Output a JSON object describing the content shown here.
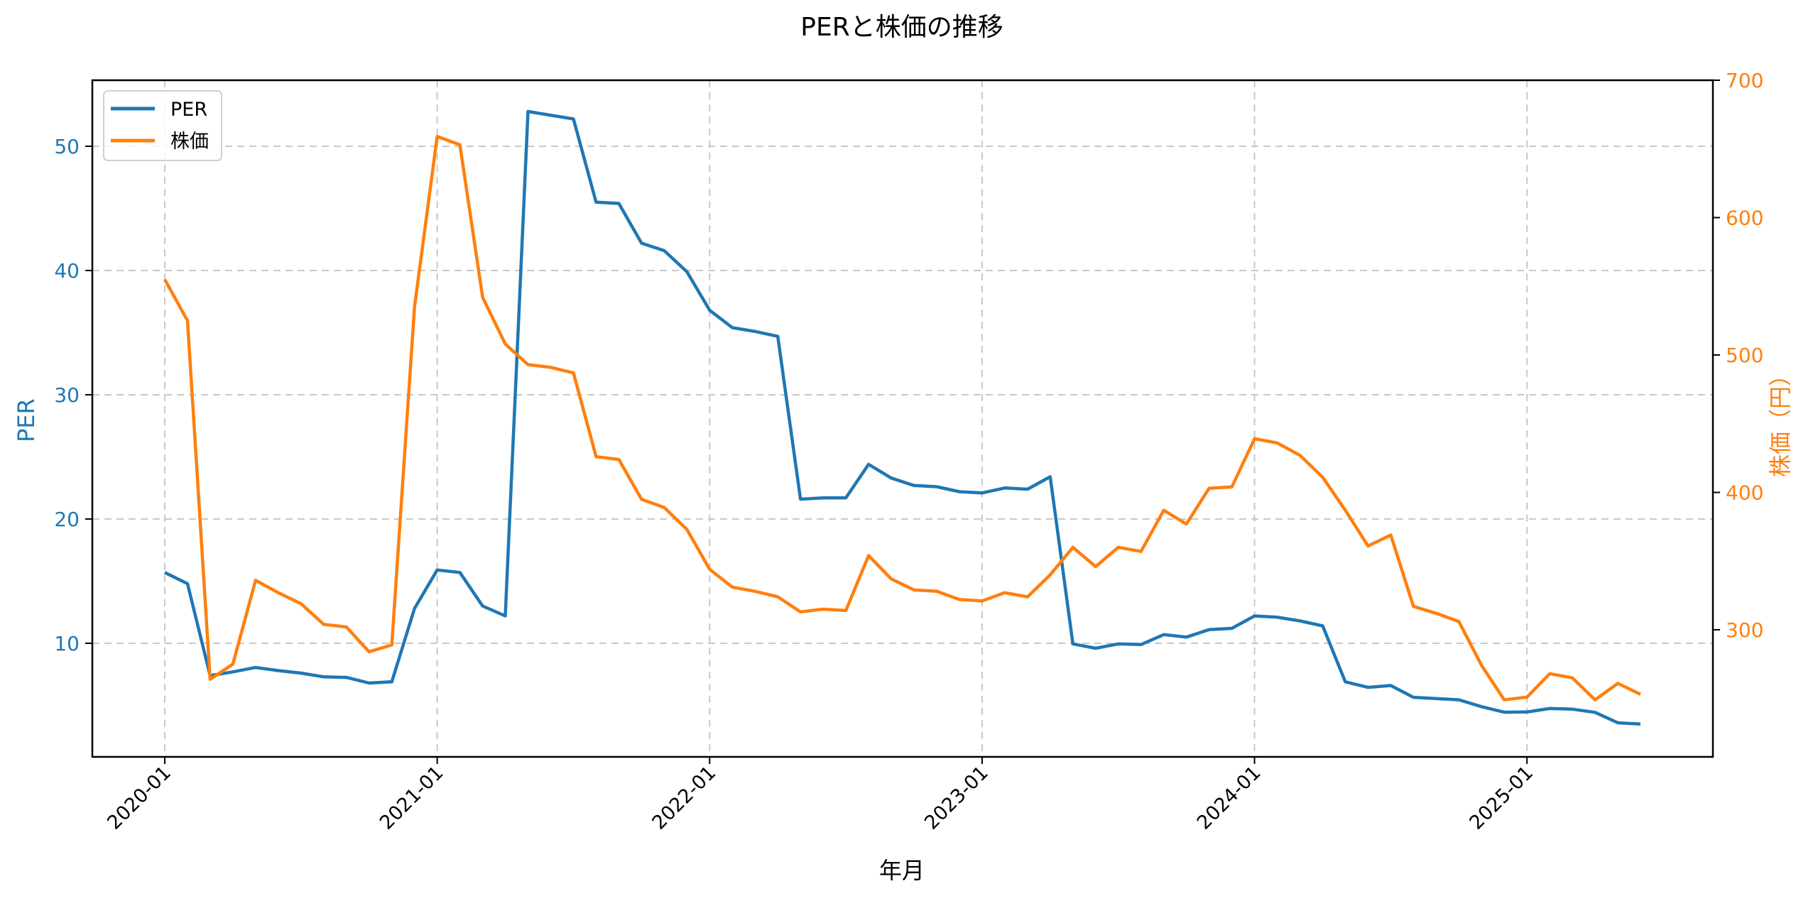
{
  "chart_data": {
    "type": "line",
    "title": "PERと株価の推移",
    "xlabel": "年月",
    "ylabel_left": "PER",
    "ylabel_right": "株価（円）",
    "x_tick_labels": [
      "2020-01",
      "2021-01",
      "2022-01",
      "2023-01",
      "2024-01",
      "2025-01"
    ],
    "y_left_ticks": [
      10,
      20,
      30,
      40,
      50
    ],
    "y_right_ticks": [
      300,
      400,
      500,
      600,
      700
    ],
    "ylim_left": [
      1.2,
      55.3
    ],
    "ylim_right": [
      209,
      700
    ],
    "grid": true,
    "legend_position": "upper left",
    "colors": {
      "PER": "#1f77b4",
      "株価": "#ff7f0e"
    },
    "x": [
      "2020-01",
      "2020-02",
      "2020-03",
      "2020-04",
      "2020-05",
      "2020-06",
      "2020-07",
      "2020-08",
      "2020-09",
      "2020-10",
      "2020-11",
      "2020-12",
      "2021-01",
      "2021-02",
      "2021-03",
      "2021-04",
      "2021-05",
      "2021-06",
      "2021-07",
      "2021-08",
      "2021-09",
      "2021-10",
      "2021-11",
      "2021-12",
      "2022-01",
      "2022-02",
      "2022-03",
      "2022-04",
      "2022-05",
      "2022-06",
      "2022-07",
      "2022-08",
      "2022-09",
      "2022-10",
      "2022-11",
      "2022-12",
      "2023-01",
      "2023-02",
      "2023-03",
      "2023-04",
      "2023-05",
      "2023-06",
      "2023-07",
      "2023-08",
      "2023-09",
      "2023-10",
      "2023-11",
      "2023-12",
      "2024-01",
      "2024-02",
      "2024-03",
      "2024-04",
      "2024-05",
      "2024-06",
      "2024-07",
      "2024-08",
      "2024-09",
      "2024-10",
      "2024-11",
      "2024-12",
      "2025-01",
      "2025-02",
      "2025-03",
      "2025-04",
      "2025-05",
      "2025-06"
    ],
    "series": [
      {
        "name": "PER",
        "axis": "left",
        "values": [
          15.7,
          14.8,
          7.4,
          7.7,
          8.05,
          7.8,
          7.6,
          7.3,
          7.25,
          6.8,
          6.9,
          12.8,
          15.9,
          15.7,
          13.0,
          12.2,
          52.8,
          52.5,
          52.2,
          45.5,
          45.4,
          42.2,
          41.6,
          39.9,
          36.8,
          35.4,
          35.1,
          34.7,
          21.6,
          21.7,
          21.7,
          24.4,
          23.3,
          22.7,
          22.6,
          22.2,
          22.1,
          22.5,
          22.4,
          23.4,
          9.95,
          9.6,
          9.95,
          9.9,
          10.7,
          10.5,
          11.1,
          11.2,
          12.2,
          12.1,
          11.8,
          11.4,
          6.9,
          6.45,
          6.6,
          5.65,
          5.55,
          5.45,
          4.9,
          4.45,
          4.47,
          4.75,
          4.7,
          4.44,
          3.6,
          3.5
        ]
      },
      {
        "name": "株価",
        "axis": "right",
        "values": [
          555,
          525,
          264,
          275,
          336,
          327,
          319,
          304,
          302,
          284,
          289,
          535,
          659,
          653,
          542,
          508,
          493,
          491,
          487,
          426,
          424,
          395,
          389,
          373,
          344,
          331,
          328,
          324,
          313,
          315,
          314,
          354,
          337,
          329,
          328,
          322,
          321,
          327,
          324,
          340,
          360,
          346,
          360,
          357,
          387,
          377,
          403,
          404,
          439,
          436,
          427,
          411,
          387,
          361,
          369,
          317,
          312,
          306,
          274,
          249,
          251,
          268,
          265,
          249,
          261,
          253
        ]
      }
    ]
  },
  "legend": {
    "items": [
      {
        "label": "PER",
        "color": "#1f77b4"
      },
      {
        "label": "株価",
        "color": "#ff7f0e"
      }
    ]
  }
}
